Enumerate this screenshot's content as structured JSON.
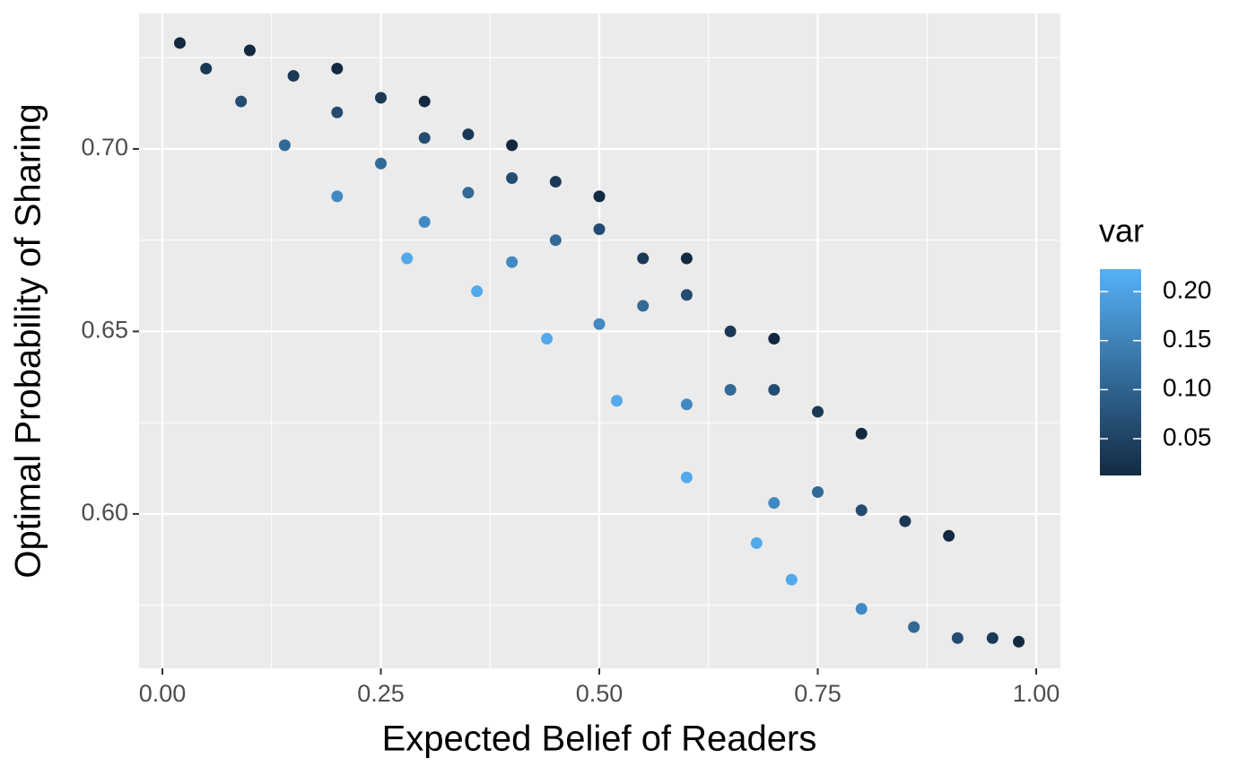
{
  "chart_data": {
    "type": "scatter",
    "xlabel": "Expected Belief of Readers",
    "ylabel": "Optimal Probability of Sharing",
    "xlim": [
      -0.0267,
      1.0277
    ],
    "ylim": [
      0.5577,
      0.7371
    ],
    "xticks": [
      {
        "value": 0,
        "label": "0.00"
      },
      0.25,
      {
        "value": 0.5,
        "label": "0.50"
      },
      0.75,
      {
        "value": 1,
        "label": "1.00"
      }
    ],
    "yticks": [
      {
        "value": 0.6,
        "label": "0.60"
      },
      0.65,
      {
        "value": 0.7,
        "label": "0.70"
      }
    ],
    "xminor": [
      0.125,
      0.375,
      0.625,
      0.875
    ],
    "yminor": [
      0.575,
      0.625,
      0.675,
      0.725
    ],
    "grid": true,
    "x": [
      0.02,
      0.1,
      0.2,
      0.3,
      0.4,
      0.5,
      0.6,
      0.7,
      0.8,
      0.9,
      0.98,
      0.05,
      0.15,
      0.25,
      0.35,
      0.45,
      0.55,
      0.65,
      0.75,
      0.85,
      0.95,
      0.09,
      0.2,
      0.3,
      0.4,
      0.5,
      0.6,
      0.7,
      0.8,
      0.91,
      0.14,
      0.25,
      0.35,
      0.45,
      0.55,
      0.65,
      0.75,
      0.86,
      0.2,
      0.3,
      0.4,
      0.5,
      0.6,
      0.7,
      0.8,
      0.28,
      0.36,
      0.44,
      0.52,
      0.6,
      0.68,
      0.72
    ],
    "y": [
      0.729,
      0.727,
      0.722,
      0.713,
      0.701,
      0.687,
      0.67,
      0.648,
      0.622,
      0.594,
      0.565,
      0.722,
      0.72,
      0.714,
      0.704,
      0.691,
      0.67,
      0.65,
      0.628,
      0.598,
      0.566,
      0.713,
      0.71,
      0.703,
      0.692,
      0.678,
      0.66,
      0.634,
      0.601,
      0.566,
      0.701,
      0.696,
      0.688,
      0.675,
      0.657,
      0.634,
      0.606,
      0.569,
      0.687,
      0.68,
      0.669,
      0.652,
      0.63,
      0.603,
      0.574,
      0.67,
      0.661,
      0.648,
      0.631,
      0.61,
      0.592,
      0.582
    ],
    "var": [
      0.01,
      0.01,
      0.01,
      0.01,
      0.01,
      0.01,
      0.01,
      0.01,
      0.01,
      0.01,
      0.01,
      0.035,
      0.035,
      0.035,
      0.035,
      0.035,
      0.035,
      0.035,
      0.035,
      0.035,
      0.035,
      0.065,
      0.065,
      0.065,
      0.065,
      0.065,
      0.065,
      0.065,
      0.065,
      0.065,
      0.11,
      0.11,
      0.11,
      0.11,
      0.11,
      0.11,
      0.11,
      0.11,
      0.16,
      0.16,
      0.16,
      0.16,
      0.16,
      0.16,
      0.16,
      0.21,
      0.21,
      0.21,
      0.21,
      0.21,
      0.21,
      0.21
    ],
    "legend_title": "var",
    "color_low": "#132B43",
    "color_high": "#56B1F7",
    "clim": [
      0.0125,
      0.2229
    ],
    "cticks": [
      0.05,
      {
        "value": 0.1,
        "label": "0.10"
      },
      0.15,
      {
        "value": 0.2,
        "label": "0.20"
      }
    ]
  }
}
